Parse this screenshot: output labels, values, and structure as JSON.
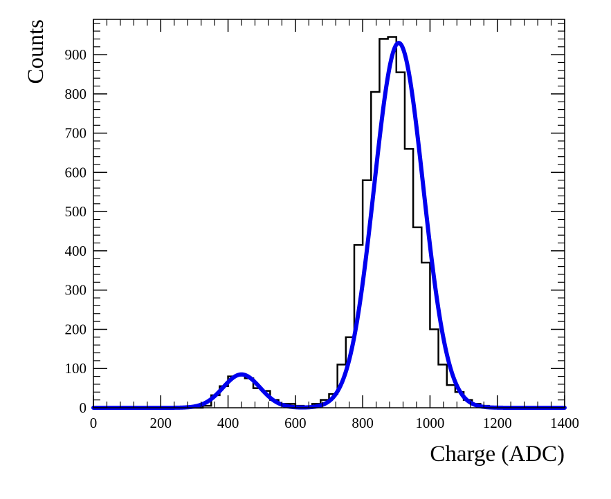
{
  "chart_data": {
    "type": "histogram",
    "xlabel": "Charge (ADC)",
    "ylabel": "Counts",
    "xlim": [
      0,
      1400
    ],
    "ylim": [
      0,
      990
    ],
    "x_ticks": [
      0,
      200,
      400,
      600,
      800,
      1000,
      1200,
      1400
    ],
    "y_ticks": [
      0,
      100,
      200,
      300,
      400,
      500,
      600,
      700,
      800,
      900
    ],
    "x_tick_labels": [
      "0",
      "200",
      "400",
      "600",
      "800",
      "1000",
      "1200",
      "1400"
    ],
    "y_tick_labels": [
      "0",
      "100",
      "200",
      "300",
      "400",
      "500",
      "600",
      "700",
      "800",
      "900"
    ],
    "grid": false,
    "series": [
      {
        "kind": "histogram",
        "color": "#000000",
        "bin_width": 25,
        "bin_edges_start": 0,
        "values": [
          0,
          0,
          0,
          0,
          0,
          0,
          0,
          0,
          0,
          0,
          0,
          0,
          0,
          5,
          32,
          55,
          80,
          82,
          75,
          50,
          43,
          20,
          10,
          10,
          5,
          3,
          10,
          20,
          35,
          110,
          180,
          415,
          580,
          805,
          940,
          945,
          855,
          660,
          460,
          370,
          200,
          110,
          58,
          40,
          20,
          10,
          5,
          3,
          2,
          2,
          2,
          2,
          2,
          2,
          0,
          0
        ]
      },
      {
        "kind": "fit",
        "color": "#0000ee",
        "components": [
          {
            "amplitude": 85,
            "mean": 440,
            "sigma": 55
          },
          {
            "amplitude": 930,
            "mean": 907,
            "sigma": 73
          }
        ]
      }
    ]
  }
}
